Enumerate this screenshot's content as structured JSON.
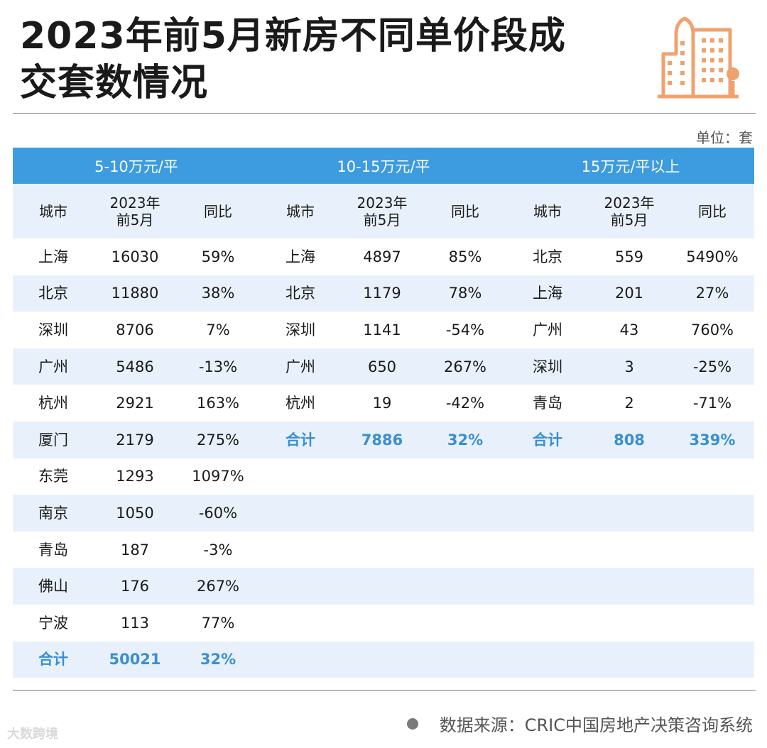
{
  "title_line1": "2023年前5月新房不同单价段成",
  "title_line2": "交套数情况",
  "unit": "单位：套",
  "header": {
    "city": "城市",
    "period_line1": "2023年",
    "period_line2": "前5月",
    "yoy": "同比"
  },
  "groups": [
    {
      "label": "5-10万元/平",
      "rows": [
        {
          "city": "上海",
          "value": "16030",
          "yoy": "59%"
        },
        {
          "city": "北京",
          "value": "11880",
          "yoy": "38%"
        },
        {
          "city": "深圳",
          "value": "8706",
          "yoy": "7%"
        },
        {
          "city": "广州",
          "value": "5486",
          "yoy": "-13%"
        },
        {
          "city": "杭州",
          "value": "2921",
          "yoy": "163%"
        },
        {
          "city": "厦门",
          "value": "2179",
          "yoy": "275%"
        },
        {
          "city": "东莞",
          "value": "1293",
          "yoy": "1097%"
        },
        {
          "city": "南京",
          "value": "1050",
          "yoy": "-60%"
        },
        {
          "city": "青岛",
          "value": "187",
          "yoy": "-3%"
        },
        {
          "city": "佛山",
          "value": "176",
          "yoy": "267%"
        },
        {
          "city": "宁波",
          "value": "113",
          "yoy": "77%"
        }
      ],
      "total": {
        "city": "合计",
        "value": "50021",
        "yoy": "32%"
      }
    },
    {
      "label": "10-15万元/平",
      "rows": [
        {
          "city": "上海",
          "value": "4897",
          "yoy": "85%"
        },
        {
          "city": "北京",
          "value": "1179",
          "yoy": "78%"
        },
        {
          "city": "深圳",
          "value": "1141",
          "yoy": "-54%"
        },
        {
          "city": "广州",
          "value": "650",
          "yoy": "267%"
        },
        {
          "city": "杭州",
          "value": "19",
          "yoy": "-42%"
        }
      ],
      "total": {
        "city": "合计",
        "value": "7886",
        "yoy": "32%"
      }
    },
    {
      "label": "15万元/平以上",
      "rows": [
        {
          "city": "北京",
          "value": "559",
          "yoy": "5490%"
        },
        {
          "city": "上海",
          "value": "201",
          "yoy": "27%"
        },
        {
          "city": "广州",
          "value": "43",
          "yoy": "760%"
        },
        {
          "city": "深圳",
          "value": "3",
          "yoy": "-25%"
        },
        {
          "city": "青岛",
          "value": "2",
          "yoy": "-71%"
        }
      ],
      "total": {
        "city": "合计",
        "value": "808",
        "yoy": "339%"
      }
    }
  ],
  "source": "数据来源：CRIC中国房地产决策咨询系统",
  "logo_text": "大数跨境",
  "colors": {
    "header_band": "#3d9be0",
    "stripe": "#e8f1fb",
    "total_text": "#3a8fd1",
    "icon": "#f0a26e"
  },
  "icon": "building-icon"
}
